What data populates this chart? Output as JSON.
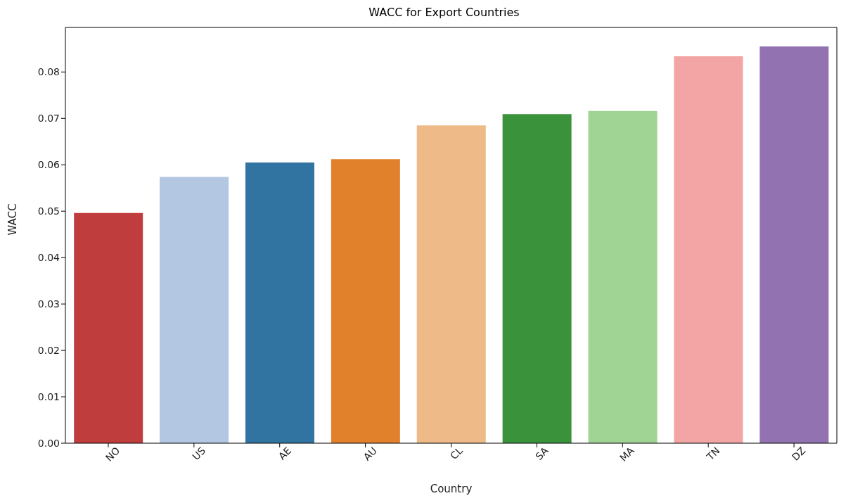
{
  "chart_data": {
    "type": "bar",
    "title": "WACC for Export Countries",
    "xlabel": "Country",
    "ylabel": "WACC",
    "categories": [
      "NO",
      "US",
      "AE",
      "AU",
      "CL",
      "SA",
      "MA",
      "TN",
      "DZ"
    ],
    "values": [
      0.0496,
      0.0574,
      0.0605,
      0.0612,
      0.0685,
      0.0709,
      0.0716,
      0.0834,
      0.0855
    ],
    "colors": [
      "#c03d3e",
      "#b3c7e3",
      "#3274a1",
      "#e1812c",
      "#eeba88",
      "#3a923a",
      "#a0d494",
      "#f2a5a4",
      "#9372b2"
    ],
    "ylim": [
      0,
      0.0896
    ],
    "yticks": [
      {
        "value": 0,
        "label": "0.00"
      },
      {
        "value": 0.01,
        "label": "0.01"
      },
      {
        "value": 0.02,
        "label": "0.02"
      },
      {
        "value": 0.03,
        "label": "0.03"
      },
      {
        "value": 0.04,
        "label": "0.04"
      },
      {
        "value": 0.05,
        "label": "0.05"
      },
      {
        "value": 0.06,
        "label": "0.06"
      },
      {
        "value": 0.07,
        "label": "0.07"
      },
      {
        "value": 0.08,
        "label": "0.08"
      }
    ],
    "grid": false
  }
}
